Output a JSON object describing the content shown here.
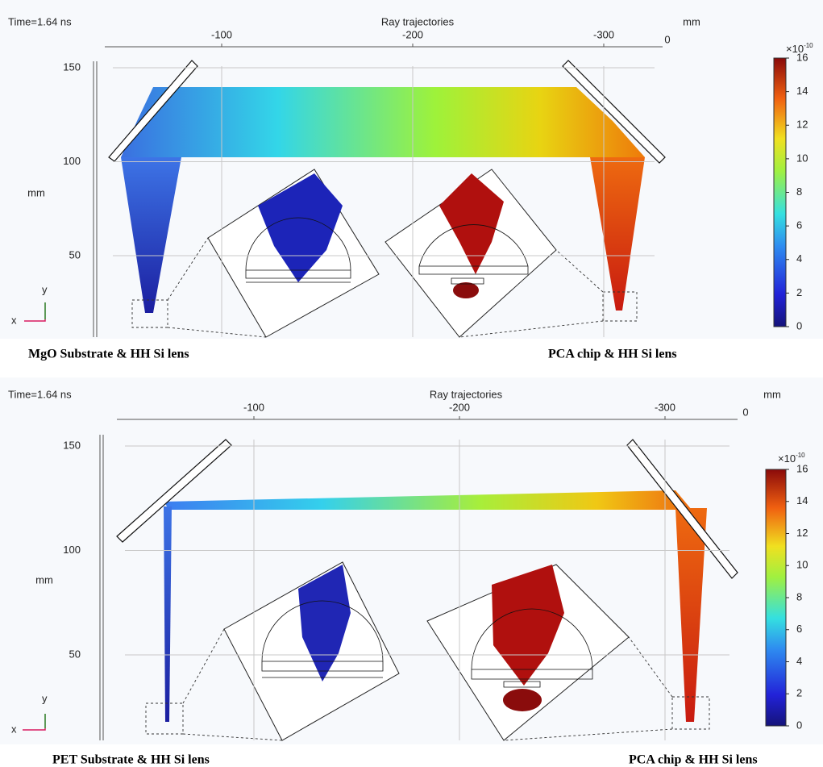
{
  "panels": [
    {
      "time": "Time=1.64 ns",
      "title": "Ray trajectories",
      "x_unit": "mm",
      "y_unit": "mm",
      "xticks": [
        -100,
        -200,
        -300
      ],
      "z_tick": 0,
      "yticks": [
        150,
        100,
        50
      ],
      "axis_labels": {
        "x": "x",
        "y": "y"
      },
      "colorbar": {
        "multiplier": "×10",
        "exponent": "-10",
        "ticks": [
          0,
          2,
          4,
          6,
          8,
          10,
          12,
          14,
          16
        ]
      },
      "captions": [
        "MgO Substrate & HH Si lens",
        "PCA chip & HH Si lens"
      ]
    },
    {
      "time": "Time=1.64 ns",
      "title": "Ray trajectories",
      "x_unit": "mm",
      "y_unit": "mm",
      "xticks": [
        -100,
        -200,
        -300
      ],
      "z_tick": 0,
      "yticks": [
        150,
        100,
        50
      ],
      "axis_labels": {
        "x": "x",
        "y": "y"
      },
      "colorbar": {
        "multiplier": "×10",
        "exponent": "-10",
        "ticks": [
          0,
          2,
          4,
          6,
          8,
          10,
          12,
          14,
          16
        ]
      },
      "captions": [
        "PET Substrate & HH Si lens",
        "PCA chip & HH Si lens"
      ]
    }
  ]
}
